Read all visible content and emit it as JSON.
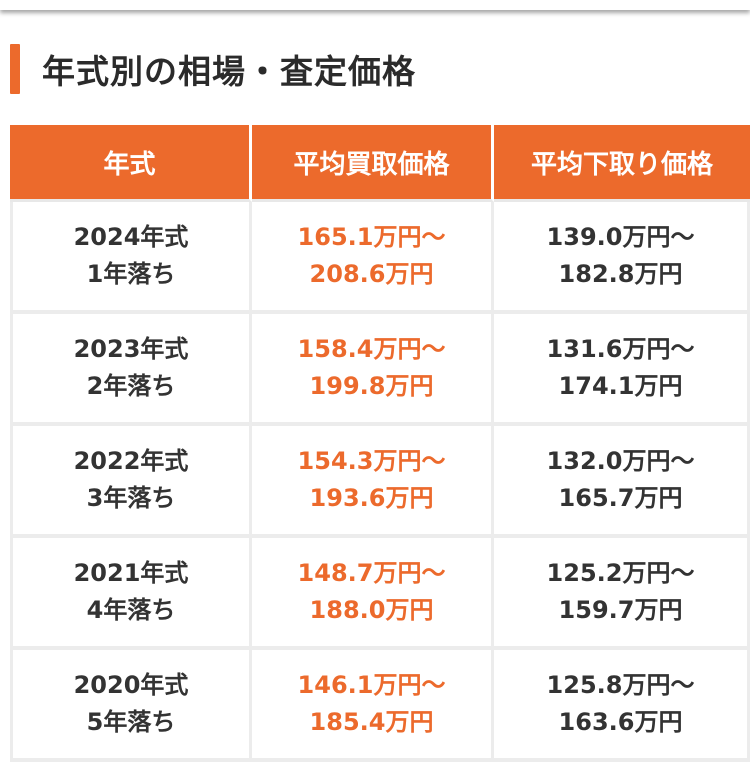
{
  "section": {
    "title": "年式別の相場・査定価格"
  },
  "table": {
    "headers": [
      "年式",
      "平均買取価格",
      "平均下取り価格"
    ],
    "rows": [
      {
        "year": "2024年式",
        "age": "1年落ち",
        "buy_min": "165.1万円〜",
        "buy_max": "208.6万円",
        "trade_min": "139.0万円〜",
        "trade_max": "182.8万円"
      },
      {
        "year": "2023年式",
        "age": "2年落ち",
        "buy_min": "158.4万円〜",
        "buy_max": "199.8万円",
        "trade_min": "131.6万円〜",
        "trade_max": "174.1万円"
      },
      {
        "year": "2022年式",
        "age": "3年落ち",
        "buy_min": "154.3万円〜",
        "buy_max": "193.6万円",
        "trade_min": "132.0万円〜",
        "trade_max": "165.7万円"
      },
      {
        "year": "2021年式",
        "age": "4年落ち",
        "buy_min": "148.7万円〜",
        "buy_max": "188.0万円",
        "trade_min": "125.2万円〜",
        "trade_max": "159.7万円"
      },
      {
        "year": "2020年式",
        "age": "5年落ち",
        "buy_min": "146.1万円〜",
        "buy_max": "185.4万円",
        "trade_min": "125.8万円〜",
        "trade_max": "163.6万円"
      }
    ]
  },
  "colors": {
    "accent": "#ec6a2c",
    "text": "#333333"
  }
}
